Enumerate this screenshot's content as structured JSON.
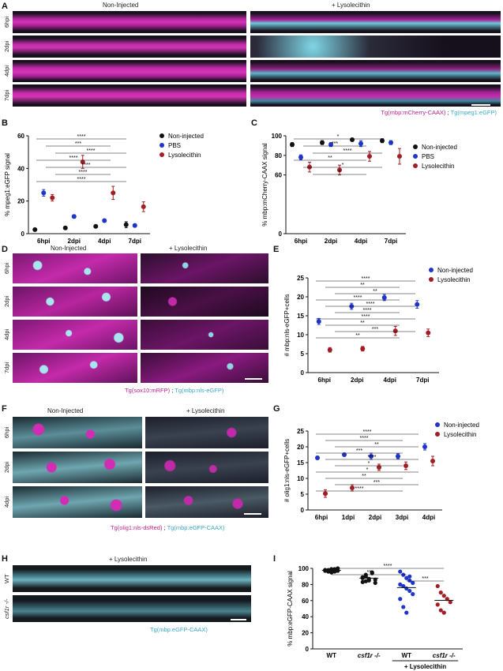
{
  "panel_labels": {
    "A": "A",
    "B": "B",
    "C": "C",
    "D": "D",
    "E": "E",
    "F": "F",
    "G": "G",
    "H": "H",
    "I": "I"
  },
  "panel_a": {
    "col_left": "Non-Injected",
    "col_right": "+ Lysolecithin",
    "rows": [
      "6hpi",
      "2dpi",
      "4dpi",
      "7dpi"
    ],
    "caption_magenta": "Tg(mbp:mCherry-CAAX)",
    "caption_sep": ";",
    "caption_cyan": "Tg(mpeg1:eGFP)"
  },
  "panel_d": {
    "col_left": "Non-Injected",
    "col_right": "+ Lysolecithin",
    "rows": [
      "6hpi",
      "2dpi",
      "4dpi",
      "7dpi"
    ],
    "caption_magenta": "Tg(sox10:mRFP)",
    "caption_sep": ";",
    "caption_cyan": "Tg(mbp:nls-eGFP)"
  },
  "panel_f": {
    "col_left": "Non-Injected",
    "col_right": "+ Lysolecithin",
    "rows": [
      "6hpi",
      "2dpi",
      "4dpi"
    ],
    "caption_magenta": "Tg(olig1:nls-dsRed)",
    "caption_sep": ";",
    "caption_cyan": "Tg(mbp:eGFP-CAAX)"
  },
  "panel_h": {
    "title": "+ Lysolecithin",
    "rows": [
      "WT",
      "csf1r -/-"
    ],
    "caption_cyan": "Tg(mbp:eGFP-CAAX)"
  },
  "colors": {
    "magenta": "#c0208f",
    "cyan": "#3aa7c8",
    "black_series": "#111111",
    "blue_series": "#1f35c9",
    "red_series": "#a01e24"
  },
  "chart_data": [
    {
      "id": "B",
      "type": "scatter",
      "ylabel": "% mpeg1:eGFP signal",
      "categories": [
        "6hpi",
        "2dpi",
        "4dpi",
        "7dpi"
      ],
      "ylim": [
        0,
        60
      ],
      "yticks": [
        "0",
        "20",
        "40",
        "60"
      ],
      "series": [
        {
          "name": "Non-injected",
          "color": "#111111",
          "values": [
            2.5,
            3.5,
            4.5,
            5.5
          ],
          "err": [
            0.5,
            0.7,
            0.8,
            1.8
          ]
        },
        {
          "name": "PBS",
          "color": "#1f35c9",
          "values": [
            25,
            10.5,
            8,
            5
          ],
          "err": [
            2,
            1,
            1,
            1
          ]
        },
        {
          "name": "Lysolecithin",
          "color": "#a01e24",
          "values": [
            22,
            44,
            25,
            16.5
          ],
          "err": [
            2,
            4,
            4,
            3
          ]
        }
      ],
      "significance": [
        "****",
        "***",
        "****",
        "****",
        "****",
        "****",
        "****"
      ],
      "legend": "right"
    },
    {
      "id": "C",
      "type": "scatter",
      "ylabel": "% mbp:mCherry-CAAX signal",
      "categories": [
        "6hpi",
        "2dpi",
        "4dpi",
        "7dpi"
      ],
      "ylim": [
        0,
        100
      ],
      "yticks": [
        "0",
        "60",
        "80",
        "100"
      ],
      "series": [
        {
          "name": "Non-injected",
          "color": "#111111",
          "values": [
            91,
            93,
            96,
            95
          ],
          "err": [
            2,
            2,
            1.5,
            2
          ]
        },
        {
          "name": "PBS",
          "color": "#1f35c9",
          "values": [
            78,
            91,
            92,
            93
          ],
          "err": [
            2.5,
            2,
            3,
            2
          ]
        },
        {
          "name": "Lysolecithin",
          "color": "#a01e24",
          "values": [
            68,
            65,
            79,
            79
          ],
          "err": [
            5,
            5,
            5,
            8
          ]
        }
      ],
      "significance": [
        "*",
        "***",
        "****",
        "**",
        "*",
        "*"
      ],
      "legend": "right"
    },
    {
      "id": "E",
      "type": "scatter",
      "ylabel": "# mbp:nls-eGFP+cells",
      "categories": [
        "6hpi",
        "2dpi",
        "4dpi",
        "7dpi"
      ],
      "ylim": [
        0,
        25
      ],
      "yticks": [
        "0",
        "5",
        "10",
        "15",
        "20",
        "25"
      ],
      "series": [
        {
          "name": "Non-injected",
          "color": "#1f35c9",
          "values": [
            13.5,
            17.5,
            19.8,
            18
          ],
          "err": [
            0.8,
            0.8,
            0.8,
            1
          ]
        },
        {
          "name": "Lysolecithin",
          "color": "#a01e24",
          "values": [
            6,
            6.3,
            11,
            10.5
          ],
          "err": [
            0.6,
            0.6,
            1.2,
            1
          ]
        }
      ],
      "significance": [
        "****",
        "**",
        "**",
        "****",
        "****",
        "****",
        "****",
        "**",
        "***",
        "**"
      ],
      "legend": "top-right"
    },
    {
      "id": "G",
      "type": "scatter",
      "ylabel": "# olig1:nls-eGFP+cells",
      "categories": [
        "6hpi",
        "1dpi",
        "2dpi",
        "3dpi",
        "4dpi"
      ],
      "ylim": [
        0,
        25
      ],
      "yticks": [
        "0",
        "5",
        "10",
        "15",
        "20",
        "25"
      ],
      "series": [
        {
          "name": "Non-injected",
          "color": "#1f35c9",
          "values": [
            16.5,
            17.5,
            17,
            17,
            20
          ],
          "err": [
            0.5,
            0.5,
            1,
            0.8,
            1
          ]
        },
        {
          "name": "Lysolecithin",
          "color": "#a01e24",
          "values": [
            5.2,
            7,
            13.5,
            14,
            15.5
          ],
          "err": [
            1.2,
            1,
            1,
            1.2,
            1.5
          ]
        }
      ],
      "significance": [
        "****",
        "****",
        "**",
        "***",
        "****",
        "*",
        "*",
        "**",
        "***",
        "****"
      ],
      "legend": "top-right"
    },
    {
      "id": "I",
      "type": "scatter",
      "ylabel": "% mbp:eGFP-CAAX signal",
      "categories": [
        "WT",
        "csf1r -/-",
        "WT",
        "csf1r -/-"
      ],
      "group_label": "+ Lysolecithin",
      "ylim": [
        0,
        100
      ],
      "yticks": [
        "0",
        "20",
        "40",
        "60",
        "80",
        "100"
      ],
      "series": [
        {
          "name": "WT",
          "color": "#111111",
          "values": [
            98,
            97,
            99,
            96,
            100,
            97,
            98,
            95,
            99,
            97,
            98,
            96
          ]
        },
        {
          "name": "csf1r -/-",
          "color": "#111111",
          "values": [
            88,
            92,
            85,
            94,
            86,
            83,
            90,
            87,
            95,
            82,
            89,
            84
          ]
        },
        {
          "name": "WT + Lysolecithin",
          "color": "#1f35c9",
          "values": [
            96,
            92,
            88,
            85,
            82,
            80,
            78,
            75,
            72,
            68,
            62,
            52,
            45,
            90
          ]
        },
        {
          "name": "csf1r -/- + Lysolecithin",
          "color": "#a01e24",
          "values": [
            78,
            70,
            66,
            62,
            58,
            55,
            48,
            45
          ]
        }
      ],
      "significance": [
        "****",
        "**",
        "***"
      ]
    }
  ]
}
